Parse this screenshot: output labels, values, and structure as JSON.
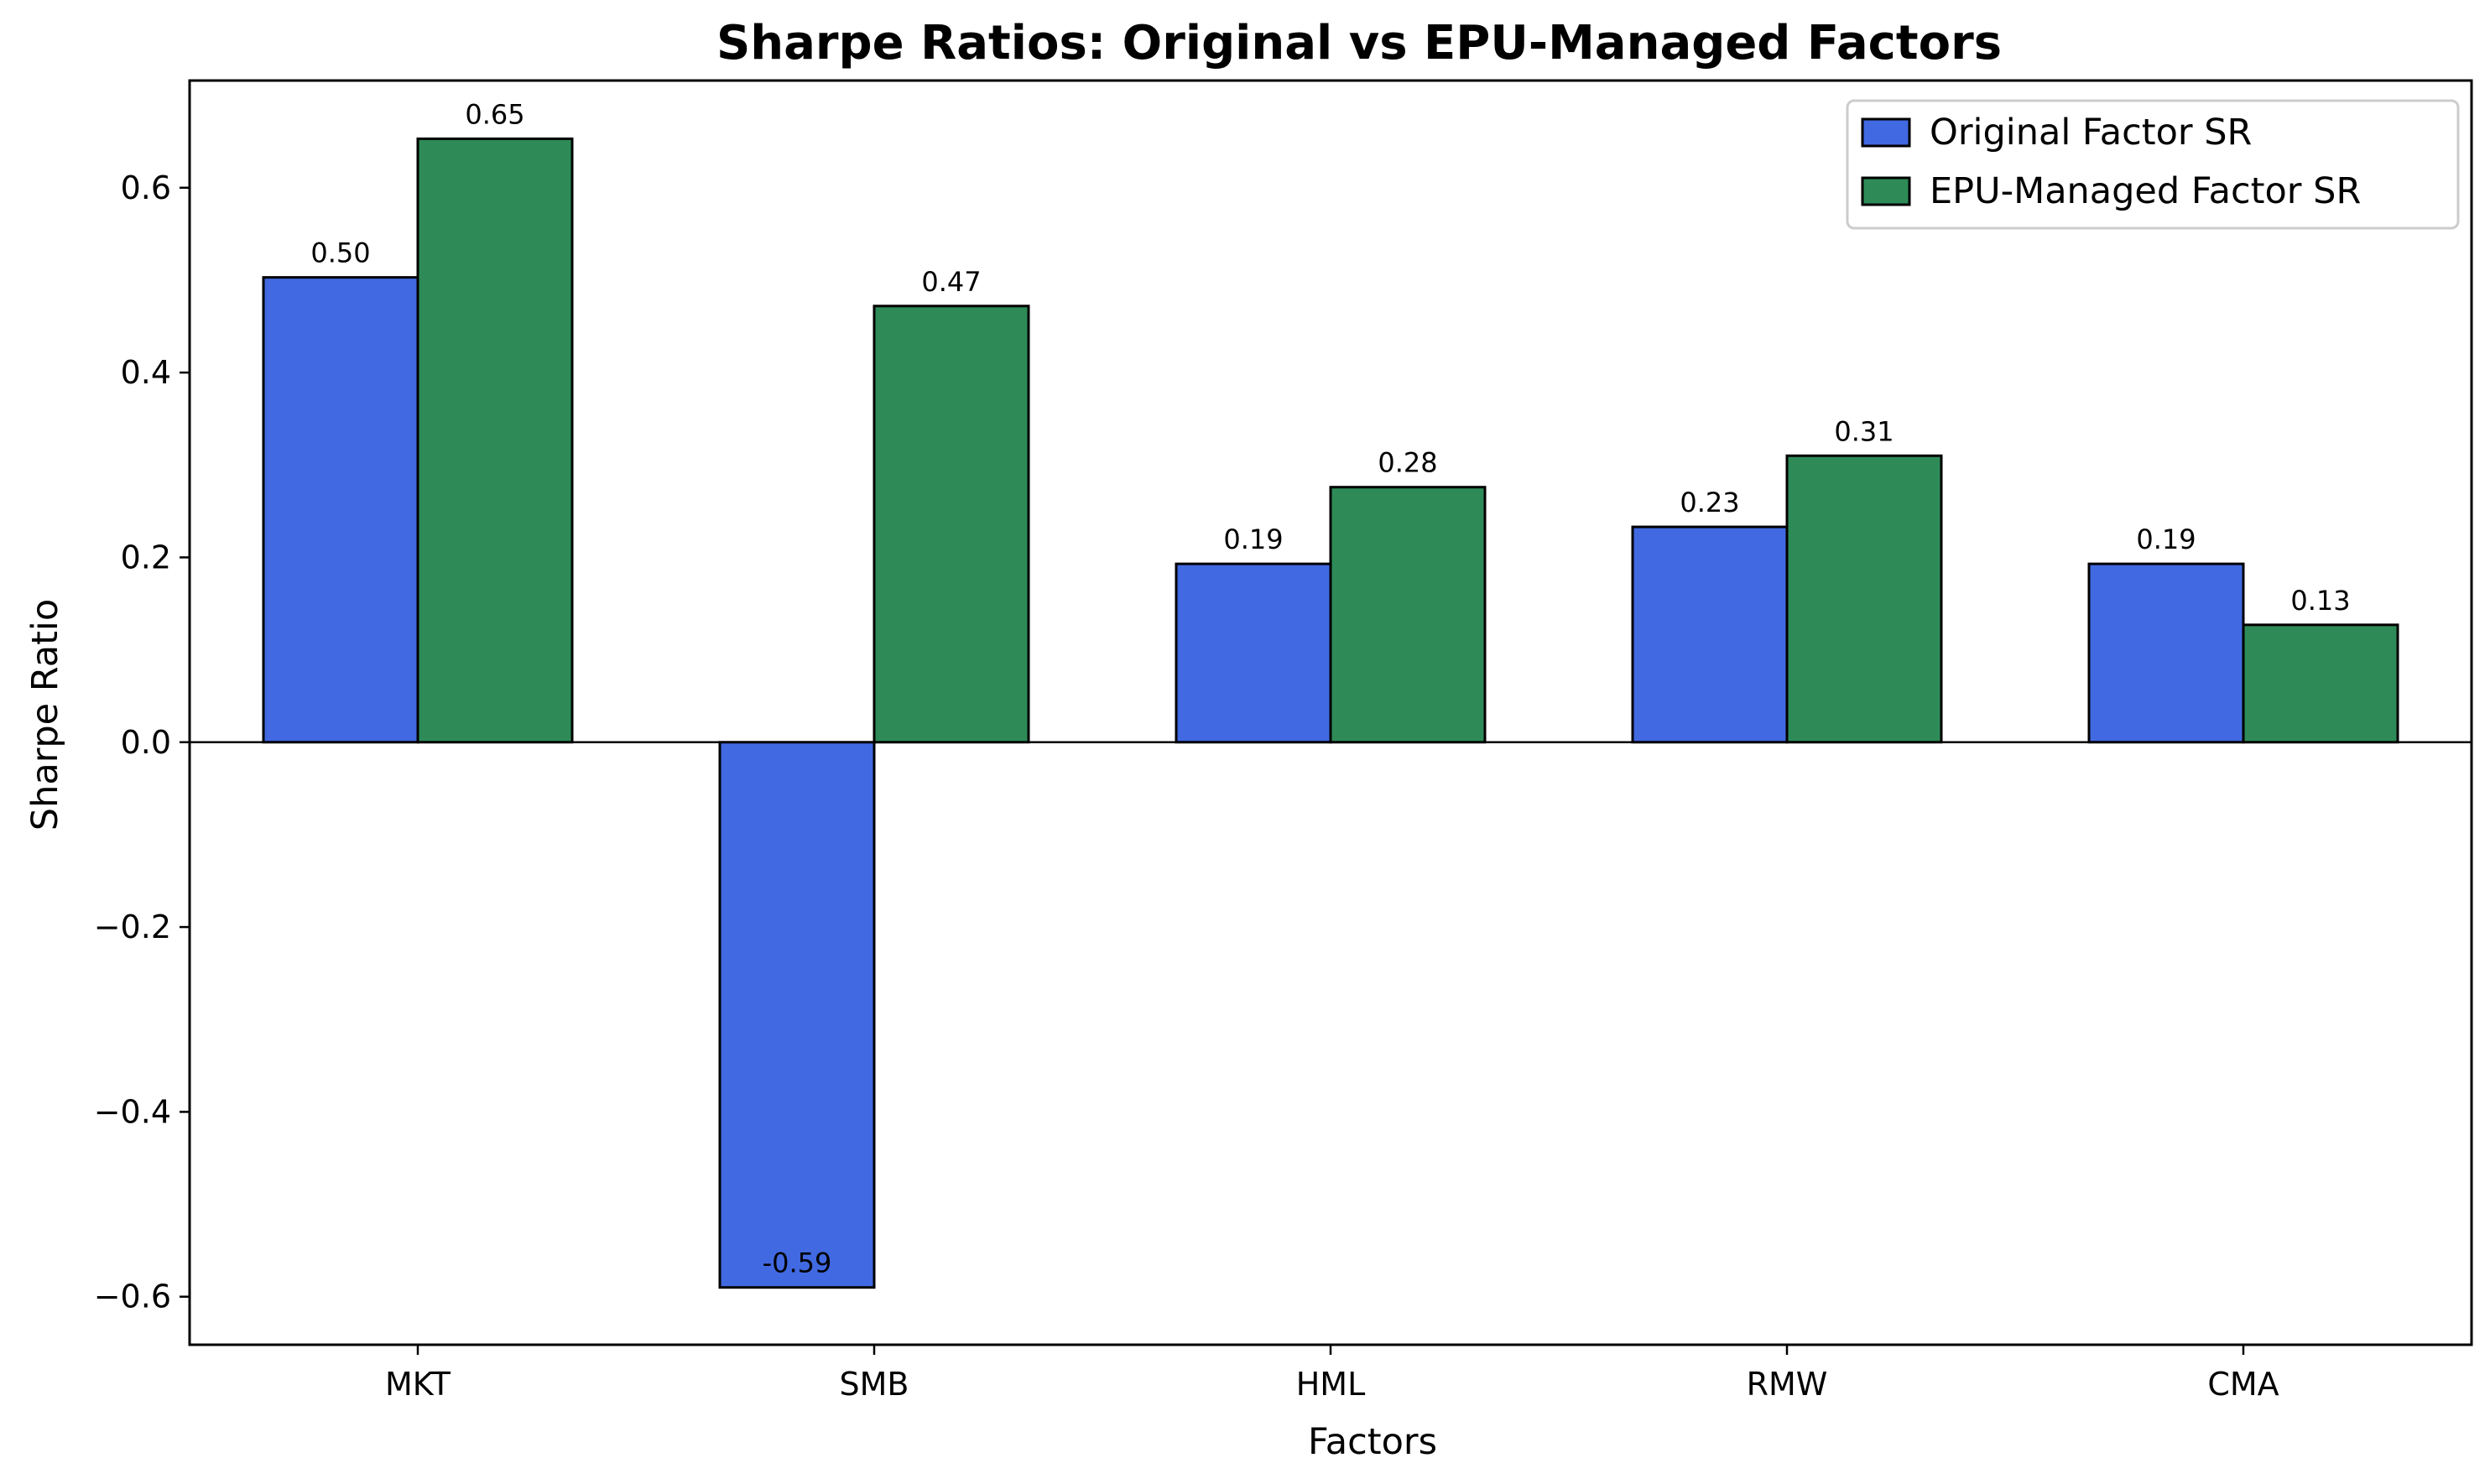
{
  "chart_data": {
    "type": "bar",
    "title": "Sharpe Ratios: Original vs EPU-Managed Factors",
    "xlabel": "Factors",
    "ylabel": "Sharpe Ratio",
    "categories": [
      "MKT",
      "SMB",
      "HML",
      "RMW",
      "CMA"
    ],
    "series": [
      {
        "name": "Original Factor SR",
        "values": [
          0.503,
          -0.59,
          0.193,
          0.233,
          0.193
        ],
        "labels": [
          "0.50",
          "-0.59",
          "0.19",
          "0.23",
          "0.19"
        ],
        "color": "#4169e1"
      },
      {
        "name": "EPU-Managed Factor SR",
        "values": [
          0.653,
          0.472,
          0.276,
          0.31,
          0.127
        ],
        "labels": [
          "0.65",
          "0.47",
          "0.28",
          "0.31",
          "0.13"
        ],
        "color": "#2e8b57"
      }
    ],
    "ylim": [
      -0.652,
      0.716
    ],
    "yticks": [
      -0.6,
      -0.4,
      -0.2,
      0.0,
      0.2,
      0.4,
      0.6
    ],
    "ytick_labels": [
      "−0.6",
      "−0.4",
      "−0.2",
      "0.0",
      "0.2",
      "0.4",
      "0.6"
    ],
    "grid": false,
    "zero_line": true,
    "legend_position": "top-right",
    "edge_color": "#000000"
  }
}
